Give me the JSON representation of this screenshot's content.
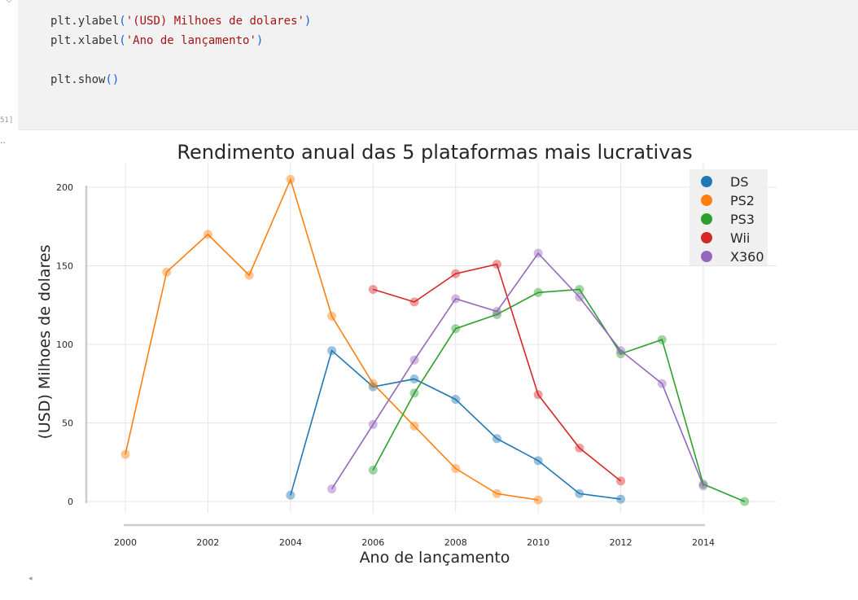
{
  "notebook": {
    "exec_count": "51]",
    "out_marker": "..",
    "collapse": "ᵔ ◇"
  },
  "code_lines": [
    [
      {
        "t": "plt.ylabel",
        "c": "fn"
      },
      {
        "t": "(",
        "c": "par"
      },
      {
        "t": "'(USD) Milhoes de dolares'",
        "c": "str"
      },
      {
        "t": ")",
        "c": "par"
      }
    ],
    [
      {
        "t": "plt.xlabel",
        "c": "fn"
      },
      {
        "t": "(",
        "c": "par"
      },
      {
        "t": "'Ano de lançamento'",
        "c": "str"
      },
      {
        "t": ")",
        "c": "par"
      }
    ],
    [],
    [
      {
        "t": "plt.show",
        "c": "fn"
      },
      {
        "t": "()",
        "c": "par"
      }
    ]
  ],
  "chart_data": {
    "type": "line",
    "title": "Rendimento anual das 5 plataformas mais lucrativas",
    "xlabel": "Ano de lançamento",
    "ylabel": "(USD) Milhoes de dolares",
    "xlim": [
      2000,
      2015
    ],
    "ylim": [
      0,
      200
    ],
    "xticks": [
      2000,
      2002,
      2004,
      2006,
      2008,
      2010,
      2012,
      2014
    ],
    "yticks": [
      0,
      50,
      100,
      150,
      200
    ],
    "grid": true,
    "legend_position": "top-right",
    "series": [
      {
        "name": "DS",
        "color": "#1f77b4",
        "x": [
          2004,
          2005,
          2006,
          2007,
          2008,
          2009,
          2010,
          2011,
          2012
        ],
        "y": [
          4,
          96,
          73,
          78,
          65,
          40,
          26,
          5,
          1.5
        ]
      },
      {
        "name": "PS2",
        "color": "#ff7f0e",
        "x": [
          2000,
          2001,
          2002,
          2003,
          2004,
          2005,
          2006,
          2007,
          2008,
          2009,
          2010
        ],
        "y": [
          30,
          146,
          170,
          144,
          205,
          118,
          75,
          48,
          21,
          5,
          1
        ]
      },
      {
        "name": "PS3",
        "color": "#2ca02c",
        "x": [
          2006,
          2007,
          2008,
          2009,
          2010,
          2011,
          2012,
          2013,
          2014,
          2015
        ],
        "y": [
          20,
          69,
          110,
          119,
          133,
          135,
          94,
          103,
          11,
          0
        ]
      },
      {
        "name": "Wii",
        "color": "#d62728",
        "x": [
          2006,
          2007,
          2008,
          2009,
          2010,
          2011,
          2012
        ],
        "y": [
          135,
          127,
          145,
          151,
          68,
          34,
          13
        ]
      },
      {
        "name": "X360",
        "color": "#9467bd",
        "x": [
          2005,
          2006,
          2007,
          2008,
          2009,
          2010,
          2011,
          2012,
          2013,
          2014
        ],
        "y": [
          8,
          49,
          90,
          129,
          121,
          158,
          130,
          96,
          75,
          10
        ]
      }
    ]
  }
}
